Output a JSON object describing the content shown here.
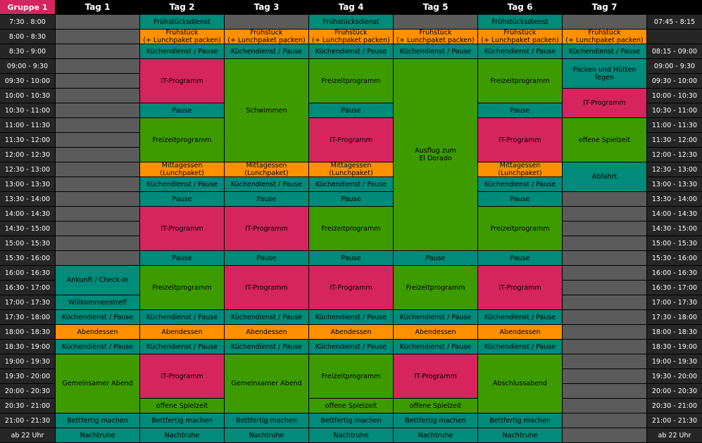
{
  "colors": {
    "teal": "#008b7b",
    "orange": "#ff9000",
    "magenta": "#d6245f",
    "green": "#3d9b00",
    "empty": "#5b5b5b",
    "time": "#262626"
  },
  "header": {
    "group": "Gruppe 1",
    "days": [
      "Tag 1",
      "Tag 2",
      "Tag 3",
      "Tag 4",
      "Tag 5",
      "Tag 6",
      "Tag 7"
    ]
  },
  "time_slots_left": [
    "7:30 . 8:00",
    "8:00 - 8:30",
    "8:30 - 9:00",
    "09:00 - 9:30",
    "09:30 - 10:00",
    "10:00 - 10:30",
    "10:30 - 11:00",
    "11:00 - 11:30",
    "11:30 - 12:00",
    "12:00 - 12:30",
    "12:30 - 13:00",
    "13:00 - 13:30",
    "13:30 - 14:00",
    "14:00 - 14:30",
    "14:30 - 15:00",
    "15:00 - 15:30",
    "15:30 - 16:00",
    "16:00 - 16:30",
    "16:30 - 17:00",
    "17:00 - 17:30",
    "17:30 - 18:00",
    "18:00 - 18:30",
    "18:30 - 19:00",
    "19:00 - 19:30",
    "19:30 - 20:00",
    "20:00 - 20:30",
    "20:30 - 21:00",
    "21:00 - 21:30",
    "ab 22 Uhr"
  ],
  "time_slots_right": [
    "07:45 - 8:15",
    "",
    "08:15 - 09:00",
    "09:00 - 9:30",
    "09:30 - 10:00",
    "10:00 - 10:30",
    "10:30 - 11:00",
    "11:00 - 11:30",
    "11:30 - 12:00",
    "12:00 - 12:30",
    "12:30 - 13:00",
    "13:00 - 13:30",
    "13:30 - 14:00",
    "14:00 - 14:30",
    "14:30 - 15:00",
    "15:00 - 15:30",
    "15:30 - 16:00",
    "16:00 - 16:30",
    "16:30 - 17:00",
    "17:00 - 17:30",
    "17:30 - 18:00",
    "18:00 - 18:30",
    "18:30 - 19:00",
    "19:00 - 19:30",
    "19:30 - 20:00",
    "20:00 - 20:30",
    "20:30 - 21:00",
    "21:00 - 21:30",
    "ab 22 Uhr"
  ],
  "days": [
    {
      "blocks": [
        {
          "from": "16:00",
          "to": "17:00",
          "label": "Ankunft / Check-In",
          "type": "teal"
        },
        {
          "from": "17:00",
          "to": "17:30",
          "label": "Willkommenstreff",
          "type": "teal"
        },
        {
          "from": "17:30",
          "to": "18:00",
          "label": "Küchendienst / Pause",
          "type": "teal"
        },
        {
          "from": "18:00",
          "to": "18:30",
          "label": "Abendessen",
          "type": "orange"
        },
        {
          "from": "18:30",
          "to": "19:00",
          "label": "Küchendienst / Pause",
          "type": "teal"
        },
        {
          "from": "19:00",
          "to": "21:00",
          "label": "Gemeinsamer Abend",
          "type": "green"
        },
        {
          "from": "21:00",
          "to": "21:30",
          "label": "Bettfertig machen",
          "type": "teal"
        },
        {
          "from": "22:00",
          "label": "Nachtruhe",
          "type": "teal"
        }
      ]
    },
    {
      "blocks": [
        {
          "from": "7:30",
          "to": "8:00",
          "label": "Frühstücksdienst",
          "type": "teal"
        },
        {
          "from": "8:00",
          "to": "8:30",
          "label": "Frühstück\n(+ Lunchpaket packen)",
          "type": "orange"
        },
        {
          "from": "8:30",
          "to": "9:00",
          "label": "Küchendienst / Pause",
          "type": "teal"
        },
        {
          "from": "9:00",
          "to": "10:30",
          "label": "IT-Programm",
          "type": "magenta"
        },
        {
          "from": "10:30",
          "to": "11:00",
          "label": "Pause",
          "type": "teal"
        },
        {
          "from": "11:00",
          "to": "12:30",
          "label": "Freizeitprogramm",
          "type": "green"
        },
        {
          "from": "12:30",
          "to": "13:00",
          "label": "Mittagessen (Lunchpaket)",
          "type": "orange"
        },
        {
          "from": "13:00",
          "to": "13:30",
          "label": "Küchendienst / Pause",
          "type": "teal"
        },
        {
          "from": "13:30",
          "to": "14:00",
          "label": "Pause",
          "type": "teal"
        },
        {
          "from": "14:00",
          "to": "15:30",
          "label": "IT-Programm",
          "type": "magenta"
        },
        {
          "from": "15:30",
          "to": "16:00",
          "label": "Pause",
          "type": "teal"
        },
        {
          "from": "16:00",
          "to": "17:30",
          "label": "Freizeitprogramm",
          "type": "green"
        },
        {
          "from": "17:30",
          "to": "18:00",
          "label": "Küchendienst / Pause",
          "type": "teal"
        },
        {
          "from": "18:00",
          "to": "18:30",
          "label": "Abendessen",
          "type": "orange"
        },
        {
          "from": "18:30",
          "to": "19:00",
          "label": "Küchendienst / Pause",
          "type": "teal"
        },
        {
          "from": "19:00",
          "to": "20:30",
          "label": "IT-Programm",
          "type": "magenta"
        },
        {
          "from": "20:30",
          "to": "21:00",
          "label": "offene Spielzeit",
          "type": "green"
        },
        {
          "from": "21:00",
          "to": "21:30",
          "label": "Bettfertig machen",
          "type": "teal"
        },
        {
          "from": "22:00",
          "label": "Nachtruhe",
          "type": "teal"
        }
      ]
    },
    {
      "blocks": [
        {
          "from": "8:00",
          "to": "8:30",
          "label": "Frühstück\n(+ Lunchpaket packen)",
          "type": "orange"
        },
        {
          "from": "8:30",
          "to": "9:00",
          "label": "Küchendienst / Pause",
          "type": "teal"
        },
        {
          "from": "9:00",
          "to": "12:30",
          "label": "Schwimmen",
          "type": "green"
        },
        {
          "from": "12:30",
          "to": "13:00",
          "label": "Mittagessen (Lunchpaket)",
          "type": "orange"
        },
        {
          "from": "13:00",
          "to": "13:30",
          "label": "Küchendienst / Pause",
          "type": "teal"
        },
        {
          "from": "13:30",
          "to": "14:00",
          "label": "Pause",
          "type": "teal"
        },
        {
          "from": "14:00",
          "to": "15:30",
          "label": "IT-Programm",
          "type": "magenta"
        },
        {
          "from": "15:30",
          "to": "16:00",
          "label": "Pause",
          "type": "teal"
        },
        {
          "from": "16:00",
          "to": "17:30",
          "label": "IT-Programm",
          "type": "magenta"
        },
        {
          "from": "17:30",
          "to": "18:00",
          "label": "Küchendienst / Pause",
          "type": "teal"
        },
        {
          "from": "18:00",
          "to": "18:30",
          "label": "Abendessen",
          "type": "orange"
        },
        {
          "from": "18:30",
          "to": "19:00",
          "label": "Küchendienst / Pause",
          "type": "teal"
        },
        {
          "from": "19:00",
          "to": "21:00",
          "label": "Gemeinsamer Abend",
          "type": "green"
        },
        {
          "from": "21:00",
          "to": "21:30",
          "label": "Bettfertig machen",
          "type": "teal"
        },
        {
          "from": "22:00",
          "label": "Nachtruhe",
          "type": "teal"
        }
      ]
    },
    {
      "blocks": [
        {
          "from": "7:30",
          "to": "8:00",
          "label": "Frühstücksdienst",
          "type": "teal"
        },
        {
          "from": "8:00",
          "to": "8:30",
          "label": "Frühstück\n(+ Lunchpaket packen)",
          "type": "orange"
        },
        {
          "from": "8:30",
          "to": "9:00",
          "label": "Küchendienst / Pause",
          "type": "teal"
        },
        {
          "from": "9:00",
          "to": "10:30",
          "label": "Freizeitprogramm",
          "type": "green"
        },
        {
          "from": "10:30",
          "to": "11:00",
          "label": "Pause",
          "type": "teal"
        },
        {
          "from": "11:00",
          "to": "12:30",
          "label": "IT-Programm",
          "type": "magenta"
        },
        {
          "from": "12:30",
          "to": "13:00",
          "label": "Mittagessen (Lunchpaket)",
          "type": "orange"
        },
        {
          "from": "13:00",
          "to": "13:30",
          "label": "Küchendienst / Pause",
          "type": "teal"
        },
        {
          "from": "13:30",
          "to": "14:00",
          "label": "Pause",
          "type": "teal"
        },
        {
          "from": "14:00",
          "to": "15:30",
          "label": "Freizeitprogramm",
          "type": "green"
        },
        {
          "from": "15:30",
          "to": "16:00",
          "label": "Pause",
          "type": "teal"
        },
        {
          "from": "16:00",
          "to": "17:30",
          "label": "IT-Programm",
          "type": "magenta"
        },
        {
          "from": "17:30",
          "to": "18:00",
          "label": "Küchendienst / Pause",
          "type": "teal"
        },
        {
          "from": "18:00",
          "to": "18:30",
          "label": "Abendessen",
          "type": "orange"
        },
        {
          "from": "18:30",
          "to": "19:00",
          "label": "Küchendienst / Pause",
          "type": "teal"
        },
        {
          "from": "19:00",
          "to": "20:30",
          "label": "Freizeitprogramm",
          "type": "green"
        },
        {
          "from": "20:30",
          "to": "21:00",
          "label": "offene Spielzeit",
          "type": "green"
        },
        {
          "from": "21:00",
          "to": "21:30",
          "label": "Bettfertig machen",
          "type": "teal"
        },
        {
          "from": "22:00",
          "label": "Nachtruhe",
          "type": "teal"
        }
      ]
    },
    {
      "blocks": [
        {
          "from": "8:00",
          "to": "8:30",
          "label": "Frühstück\n(+ Lunchpaket packen)",
          "type": "orange"
        },
        {
          "from": "8:30",
          "to": "9:00",
          "label": "Küchendienst / Pause",
          "type": "teal"
        },
        {
          "from": "9:00",
          "to": "15:30",
          "label": "Ausflug zum\nEl Dorado",
          "type": "green"
        },
        {
          "from": "15:30",
          "to": "16:00",
          "label": "Pause",
          "type": "teal"
        },
        {
          "from": "16:00",
          "to": "17:30",
          "label": "Freizeitprogramm",
          "type": "green"
        },
        {
          "from": "17:30",
          "to": "18:00",
          "label": "Küchendienst / Pause",
          "type": "teal"
        },
        {
          "from": "18:00",
          "to": "18:30",
          "label": "Abendessen",
          "type": "orange"
        },
        {
          "from": "18:30",
          "to": "19:00",
          "label": "Küchendienst / Pause",
          "type": "teal"
        },
        {
          "from": "19:00",
          "to": "20:30",
          "label": "IT-Programm",
          "type": "magenta"
        },
        {
          "from": "20:30",
          "to": "21:00",
          "label": "offene Spielzeit",
          "type": "green"
        },
        {
          "from": "21:00",
          "to": "21:30",
          "label": "Bettfertig machen",
          "type": "teal"
        },
        {
          "from": "22:00",
          "label": "Nachtruhe",
          "type": "teal"
        }
      ]
    },
    {
      "blocks": [
        {
          "from": "7:30",
          "to": "8:00",
          "label": "Frühstücksdienst",
          "type": "teal"
        },
        {
          "from": "8:00",
          "to": "8:30",
          "label": "Frühstück\n(+ Lunchpaket packen)",
          "type": "orange"
        },
        {
          "from": "8:30",
          "to": "9:00",
          "label": "Küchendienst / Pause",
          "type": "teal"
        },
        {
          "from": "9:00",
          "to": "10:30",
          "label": "Freizeitprogramm",
          "type": "green"
        },
        {
          "from": "10:30",
          "to": "11:00",
          "label": "Pause",
          "type": "teal"
        },
        {
          "from": "11:00",
          "to": "12:30",
          "label": "IT-Programm",
          "type": "magenta"
        },
        {
          "from": "12:30",
          "to": "13:00",
          "label": "Mittagessen (Lunchpaket)",
          "type": "orange"
        },
        {
          "from": "13:00",
          "to": "13:30",
          "label": "Küchendienst / Pause",
          "type": "teal"
        },
        {
          "from": "13:30",
          "to": "14:00",
          "label": "Pause",
          "type": "teal"
        },
        {
          "from": "14:00",
          "to": "15:30",
          "label": "Freizeitprogramm",
          "type": "green"
        },
        {
          "from": "15:30",
          "to": "16:00",
          "label": "Pause",
          "type": "teal"
        },
        {
          "from": "16:00",
          "to": "17:30",
          "label": "IT-Programm",
          "type": "magenta"
        },
        {
          "from": "17:30",
          "to": "18:00",
          "label": "Küchendienst / Pause",
          "type": "teal"
        },
        {
          "from": "18:00",
          "to": "18:30",
          "label": "Abendessen",
          "type": "orange"
        },
        {
          "from": "18:30",
          "to": "19:00",
          "label": "Küchendienst / Pause",
          "type": "teal"
        },
        {
          "from": "19:00",
          "to": "21:00",
          "label": "Abschlussabend",
          "type": "green"
        },
        {
          "from": "21:00",
          "to": "21:30",
          "label": "Bettfertig machen",
          "type": "teal"
        },
        {
          "from": "22:00",
          "label": "Nachtruhe",
          "type": "teal"
        }
      ]
    },
    {
      "blocks": [
        {
          "from": "8:00",
          "to": "8:30",
          "label": "Frühstück\n(+ Lunchpaket packen)",
          "type": "orange"
        },
        {
          "from": "8:30",
          "to": "9:00",
          "label": "Küchendienst / Pause",
          "type": "teal"
        },
        {
          "from": "9:00",
          "to": "10:00",
          "label": "Packen und Hütten fegen",
          "type": "teal"
        },
        {
          "from": "10:00",
          "to": "11:00",
          "label": "IT-Programm",
          "type": "magenta"
        },
        {
          "from": "11:00",
          "to": "12:30",
          "label": "offene Spielzeit",
          "type": "green"
        },
        {
          "from": "12:30",
          "to": "13:30",
          "label": "Abfahrt",
          "type": "teal"
        }
      ]
    }
  ]
}
